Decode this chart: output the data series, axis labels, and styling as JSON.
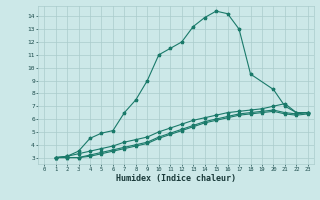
{
  "xlabel": "Humidex (Indice chaleur)",
  "bg_color": "#cce8e8",
  "grid_color": "#aacccc",
  "line_color": "#1a7a6a",
  "xlim": [
    -0.5,
    23.5
  ],
  "ylim": [
    2.5,
    14.8
  ],
  "yticks": [
    3,
    4,
    5,
    6,
    7,
    8,
    9,
    10,
    11,
    12,
    13,
    14
  ],
  "xticks": [
    0,
    1,
    2,
    3,
    4,
    5,
    6,
    7,
    8,
    9,
    10,
    11,
    12,
    13,
    14,
    15,
    16,
    17,
    18,
    19,
    20,
    21,
    22,
    23
  ],
  "line1_x": [
    1,
    2,
    3,
    4,
    5,
    6,
    7,
    8,
    9,
    10,
    11,
    12,
    13,
    14,
    15,
    16,
    17,
    18,
    20,
    21,
    22,
    23
  ],
  "line1_y": [
    3.0,
    3.1,
    3.5,
    4.5,
    4.9,
    5.1,
    6.5,
    7.5,
    9.0,
    11.0,
    11.5,
    12.0,
    13.2,
    13.9,
    14.4,
    14.2,
    13.0,
    9.5,
    8.3,
    7.0,
    6.5,
    6.5
  ],
  "line2_x": [
    1,
    2,
    3,
    4,
    5,
    6,
    7,
    8,
    9,
    10,
    11,
    12,
    13,
    14,
    15,
    16,
    17,
    18,
    19,
    20,
    21,
    22,
    23
  ],
  "line2_y": [
    3.0,
    3.1,
    3.3,
    3.5,
    3.7,
    3.9,
    4.2,
    4.4,
    4.6,
    5.0,
    5.3,
    5.6,
    5.9,
    6.1,
    6.3,
    6.5,
    6.6,
    6.7,
    6.8,
    7.0,
    7.2,
    6.5,
    6.5
  ],
  "line3_x": [
    1,
    2,
    3,
    4,
    5,
    6,
    7,
    8,
    9,
    10,
    11,
    12,
    13,
    14,
    15,
    16,
    17,
    18,
    19,
    20,
    21,
    22,
    23
  ],
  "line3_y": [
    3.0,
    3.0,
    3.0,
    3.2,
    3.4,
    3.6,
    3.8,
    4.0,
    4.2,
    4.6,
    4.9,
    5.2,
    5.5,
    5.8,
    6.0,
    6.2,
    6.4,
    6.5,
    6.6,
    6.7,
    6.5,
    6.4,
    6.5
  ],
  "line4_x": [
    1,
    2,
    3,
    4,
    5,
    6,
    7,
    8,
    9,
    10,
    11,
    12,
    13,
    14,
    15,
    16,
    17,
    18,
    19,
    20,
    21,
    22,
    23
  ],
  "line4_y": [
    3.0,
    3.0,
    3.0,
    3.1,
    3.3,
    3.5,
    3.7,
    3.9,
    4.1,
    4.5,
    4.8,
    5.1,
    5.4,
    5.7,
    5.9,
    6.1,
    6.3,
    6.4,
    6.5,
    6.6,
    6.4,
    6.3,
    6.4
  ]
}
